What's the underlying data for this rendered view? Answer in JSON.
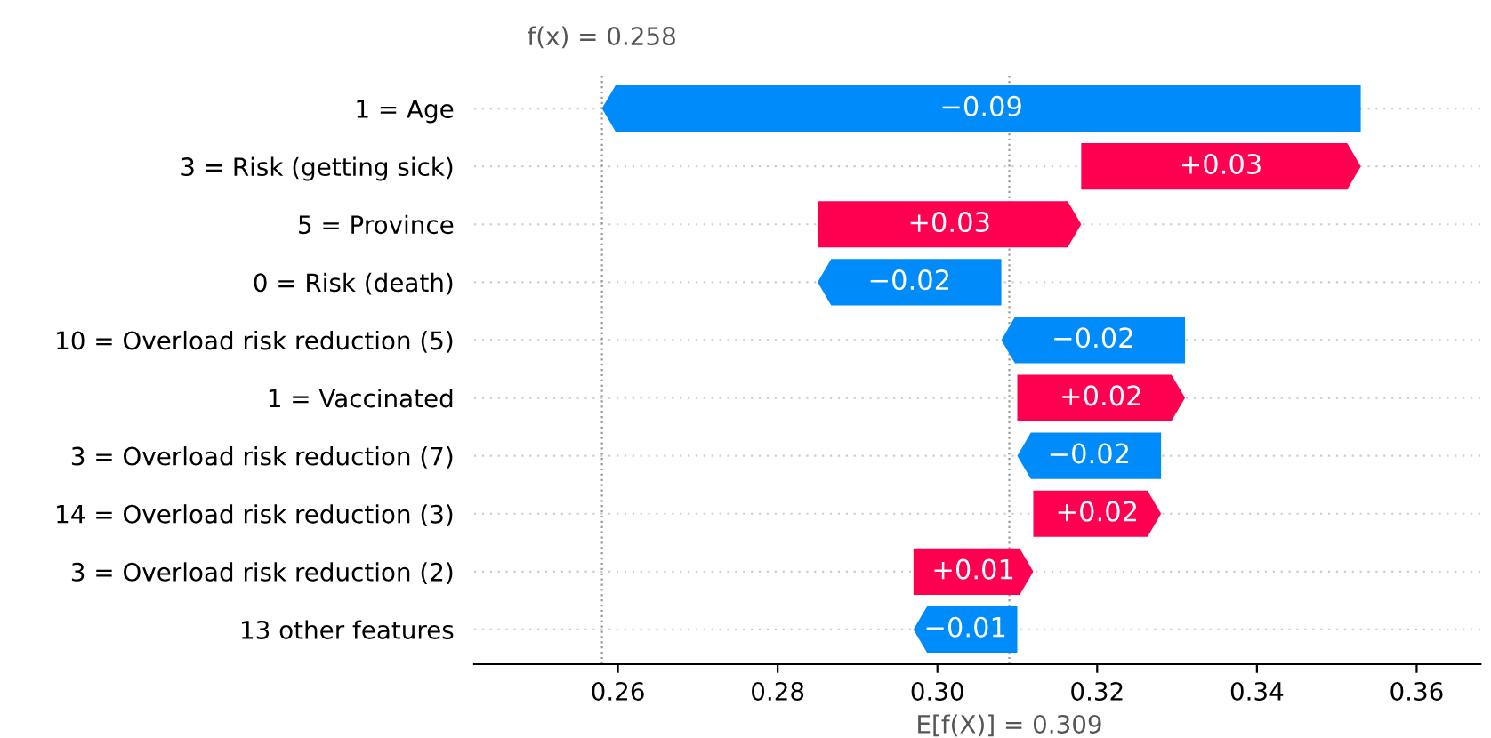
{
  "chart_data": {
    "type": "bar",
    "orientation": "horizontal",
    "categories": [
      "1 = Age",
      "3 = Risk (getting sick)",
      "5 = Province",
      "0 = Risk (death)",
      "10 = Overload risk reduction (5)",
      "1 = Vaccinated",
      "3 = Overload risk reduction (7)",
      "14 = Overload risk reduction (3)",
      "3 = Overload risk reduction (2)",
      "13 other features"
    ],
    "base": [
      0.353,
      0.318,
      0.285,
      0.308,
      0.331,
      0.31,
      0.328,
      0.312,
      0.297,
      0.31
    ],
    "values": [
      -0.095,
      0.035,
      0.033,
      -0.023,
      -0.023,
      0.021,
      -0.018,
      0.016,
      0.015,
      -0.013
    ],
    "colors": [
      "#008bfb",
      "#ff0051",
      "#ff0051",
      "#008bfb",
      "#008bfb",
      "#ff0051",
      "#008bfb",
      "#ff0051",
      "#ff0051",
      "#008bfb"
    ],
    "value_labels": [
      "−0.09",
      "+0.03",
      "+0.03",
      "−0.02",
      "−0.02",
      "+0.02",
      "−0.02",
      "+0.02",
      "+0.01",
      "−0.01"
    ],
    "xlim": [
      0.242,
      0.368
    ],
    "xticks": [
      {
        "value": 0.26,
        "label": "0.26"
      },
      {
        "value": 0.28,
        "label": "0.28"
      },
      {
        "value": 0.3,
        "label": "0.30"
      },
      {
        "value": 0.32,
        "label": "0.32"
      },
      {
        "value": 0.34,
        "label": "0.34"
      },
      {
        "value": 0.36,
        "label": "0.36"
      }
    ],
    "ref_lines": [
      {
        "axis": "x",
        "value": 0.258,
        "label": "f(x) = 0.258",
        "color": "#999999",
        "line_style": "dotted"
      },
      {
        "axis": "x",
        "value": 0.309,
        "label": "E[f(X)] = 0.309",
        "color": "#999999",
        "line_style": "dotted"
      }
    ],
    "grid": "y"
  }
}
